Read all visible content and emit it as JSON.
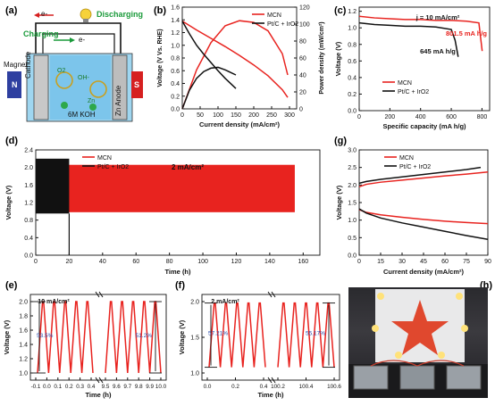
{
  "panels": {
    "a": {
      "label": "(a)",
      "discharging": "Discharging",
      "charging": "Charging",
      "e_top": "e-",
      "e_mid": "e-",
      "magnet": "Magnet",
      "cathode": "Cathode",
      "anode": "Zn Anode",
      "n": "N",
      "s": "S",
      "electrolyte": "6M KOH",
      "oh": "OH-",
      "o2": "O2",
      "zn": "Zn"
    },
    "b": {
      "label": "(b)"
    },
    "c": {
      "label": "(c)",
      "annotation": "j = 10 mA/cm²",
      "mcn_capacity": "801.5 mA h/g",
      "pt_capacity": "645 mA h/g"
    },
    "d": {
      "label": "(d)",
      "annotation": "2 mA/cm²"
    },
    "e": {
      "label": "(e)",
      "annotation": "10 mA/cm²",
      "eff_left": "53.5%",
      "eff_right": "51.2%"
    },
    "f": {
      "label": "(f)",
      "annotation": "2 mA/cm²",
      "eff_left": "57.21%",
      "eff_right": "55.17%"
    },
    "g": {
      "label": "(g)"
    },
    "h": {
      "label": "(h)"
    }
  },
  "colors": {
    "mcn": "#e8231f",
    "pt": "#111111",
    "cell_blue": "#8fd0ee",
    "n_pole": "#2e3fa0",
    "s_pole": "#d62020"
  },
  "chart_data": [
    {
      "id": "b",
      "type": "line",
      "xlabel": "Current density (mA/cm²)",
      "ylabel": "Voltage (V Vs. RHE)",
      "y2label": "Power density (mW/cm²)",
      "xlim": [
        0,
        320
      ],
      "ylim": [
        0,
        1.6
      ],
      "y2lim": [
        0,
        120
      ],
      "xticks": [
        0,
        50,
        100,
        150,
        200,
        250,
        300
      ],
      "yticks": [
        0.0,
        0.2,
        0.4,
        0.6,
        0.8,
        1.0,
        1.2,
        1.4,
        1.6
      ],
      "y2ticks": [
        0,
        20,
        40,
        60,
        80,
        100,
        120
      ],
      "legend": [
        "MCN",
        "Pt/C + IrO2"
      ],
      "series": [
        {
          "name": "MCN",
          "axis": "left",
          "x": [
            0,
            40,
            80,
            120,
            160,
            200,
            240,
            280,
            295
          ],
          "y": [
            1.38,
            1.24,
            1.11,
            0.98,
            0.84,
            0.69,
            0.52,
            0.3,
            0.18
          ]
        },
        {
          "name": "MCN",
          "axis": "right",
          "x": [
            0,
            40,
            80,
            120,
            160,
            200,
            240,
            280,
            295
          ],
          "y": [
            0,
            46,
            78,
            98,
            104,
            102,
            92,
            65,
            40
          ]
        },
        {
          "name": "Pt/C + IrO2",
          "axis": "left",
          "x": [
            0,
            20,
            40,
            60,
            80,
            100,
            120,
            150
          ],
          "y": [
            1.38,
            1.18,
            1.0,
            0.86,
            0.73,
            0.6,
            0.48,
            0.32
          ]
        },
        {
          "name": "Pt/C + IrO2",
          "axis": "right",
          "x": [
            0,
            20,
            40,
            60,
            80,
            100,
            120,
            150
          ],
          "y": [
            0,
            22,
            36,
            44,
            48,
            49,
            46,
            40
          ]
        }
      ]
    },
    {
      "id": "c",
      "type": "line",
      "xlabel": "Specific capacity (mA h/g)",
      "ylabel": "Voltage (V)",
      "xlim": [
        0,
        850
      ],
      "ylim": [
        0.0,
        1.25
      ],
      "xticks": [
        0,
        200,
        400,
        600,
        800
      ],
      "yticks": [
        0.0,
        0.2,
        0.4,
        0.6,
        0.8,
        1.0,
        1.2
      ],
      "legend": [
        "MCN",
        "Pt/C + IrO2"
      ],
      "series": [
        {
          "name": "MCN",
          "x": [
            0,
            100,
            200,
            300,
            400,
            500,
            600,
            700,
            780,
            790,
            801.5
          ],
          "y": [
            1.14,
            1.12,
            1.11,
            1.1,
            1.1,
            1.09,
            1.09,
            1.08,
            1.06,
            0.9,
            0.72
          ]
        },
        {
          "name": "Pt/C + IrO2",
          "x": [
            0,
            100,
            200,
            300,
            400,
            500,
            600,
            625,
            645
          ],
          "y": [
            1.06,
            1.04,
            1.03,
            1.02,
            1.02,
            1.01,
            0.98,
            0.85,
            0.65
          ]
        }
      ]
    },
    {
      "id": "d",
      "type": "area",
      "xlabel": "Time (h)",
      "ylabel": "Voltage (V)",
      "xlim": [
        0,
        170
      ],
      "ylim": [
        0.0,
        2.4
      ],
      "xticks": [
        0,
        20,
        40,
        60,
        80,
        100,
        120,
        140,
        160
      ],
      "yticks": [
        0.0,
        0.4,
        0.8,
        1.2,
        1.6,
        2.0,
        2.4
      ],
      "legend": [
        "MCN",
        "Pt/C + IrO2"
      ],
      "series": [
        {
          "name": "MCN",
          "x_end": 155,
          "upper": 2.06,
          "lower": 0.98
        },
        {
          "name": "Pt/C + IrO2",
          "x_end": 20,
          "upper": 2.2,
          "lower": 0.95
        }
      ]
    },
    {
      "id": "g",
      "type": "line",
      "xlabel": "Current density (mA/cm²)",
      "ylabel": "Voltage (V)",
      "xlim": [
        0,
        90
      ],
      "ylim": [
        0.0,
        3.0
      ],
      "xticks": [
        0,
        15,
        30,
        45,
        60,
        75,
        90
      ],
      "yticks": [
        0.0,
        0.5,
        1.0,
        1.5,
        2.0,
        2.5,
        3.0
      ],
      "legend": [
        "MCN",
        "Pt/C + IrO2"
      ],
      "series": [
        {
          "name": "MCN",
          "x": [
            0,
            5,
            15,
            30,
            45,
            60,
            75,
            90
          ],
          "y": [
            1.95,
            2.02,
            2.08,
            2.14,
            2.2,
            2.26,
            2.31,
            2.37
          ]
        },
        {
          "name": "MCN",
          "x": [
            0,
            5,
            15,
            30,
            45,
            60,
            75,
            90
          ],
          "y": [
            1.3,
            1.22,
            1.15,
            1.08,
            1.02,
            0.97,
            0.93,
            0.9
          ]
        },
        {
          "name": "Pt/C + IrO2",
          "x": [
            0,
            5,
            15,
            30,
            45,
            60,
            75,
            85
          ],
          "y": [
            2.05,
            2.1,
            2.16,
            2.23,
            2.3,
            2.37,
            2.44,
            2.5
          ]
        },
        {
          "name": "Pt/C + IrO2",
          "x": [
            0,
            5,
            15,
            30,
            45,
            60,
            75,
            90
          ],
          "y": [
            1.32,
            1.2,
            1.06,
            0.92,
            0.8,
            0.68,
            0.56,
            0.45
          ]
        }
      ]
    },
    {
      "id": "e",
      "type": "line",
      "xlabel": "Time (h)",
      "ylabel": "Voltage (V)",
      "ylim": [
        0.9,
        2.1
      ],
      "xticks_left": [
        "-0.1",
        "0.0",
        "0.1",
        "0.2",
        "0.3",
        "0.4"
      ],
      "xticks_right": [
        "9.5",
        "9.6",
        "9.7",
        "9.8",
        "9.9",
        "10.0"
      ],
      "yticks": [
        1.0,
        1.2,
        1.4,
        1.6,
        1.8,
        2.0
      ],
      "series": [
        {
          "name": "MCN",
          "cycles_left": 5,
          "cycles_right": 5,
          "high": 2.0,
          "low": 1.0
        }
      ]
    },
    {
      "id": "f",
      "type": "line",
      "xlabel": "Time (h)",
      "ylabel": "Voltage (V)",
      "ylim": [
        0.9,
        2.1
      ],
      "xticks_left": [
        "0.0",
        "0.2",
        "0.4"
      ],
      "xticks_right": [
        "100.2",
        "100.4",
        "100.6"
      ],
      "yticks": [
        1.0,
        1.5,
        2.0
      ],
      "series": [
        {
          "name": "MCN",
          "cycles_left": 5,
          "cycles_right": 5,
          "high": 1.98,
          "low": 1.08
        }
      ]
    }
  ]
}
